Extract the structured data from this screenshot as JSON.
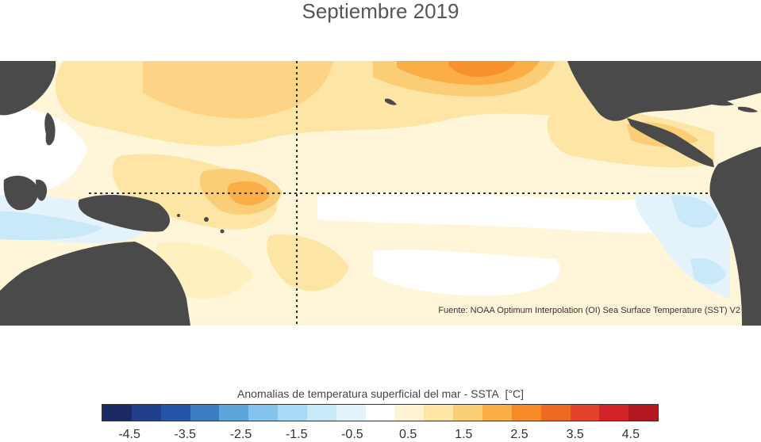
{
  "title": "Septiembre 2019",
  "source": "Fuente: NOAA Optimum Interpolation (OI) Sea Surface Temperature (SST) V2",
  "colorbar": {
    "label": "Anomalias de temperatura superficial del mar - SSTA",
    "unit": "[°C]",
    "colors": [
      "#1b2a63",
      "#223f8c",
      "#2456a8",
      "#3c7fc1",
      "#5da6dc",
      "#85c3ec",
      "#a9d9f4",
      "#c9e8f8",
      "#e4f3fb",
      "#ffffff",
      "#fff4d2",
      "#fde5a6",
      "#fccd77",
      "#fbae45",
      "#f68a27",
      "#ed6a22",
      "#e2432a",
      "#d2232a",
      "#b2181f"
    ],
    "ticks": [
      {
        "label": "-4.5",
        "value": -4.5
      },
      {
        "label": "-3.5",
        "value": -3.5
      },
      {
        "label": "-2.5",
        "value": -2.5
      },
      {
        "label": "-1.5",
        "value": -1.5
      },
      {
        "label": "-0.5",
        "value": -0.5
      },
      {
        "label": "0.5",
        "value": 0.5
      },
      {
        "label": "1.5",
        "value": 1.5
      },
      {
        "label": "2.5",
        "value": 2.5
      },
      {
        "label": "3.5",
        "value": 3.5
      },
      {
        "label": "4.5",
        "value": 4.5
      }
    ],
    "range": [
      -5,
      5
    ]
  },
  "map": {
    "land_color": "#4a4a4a",
    "ocean_base_color": "#fff6da"
  }
}
